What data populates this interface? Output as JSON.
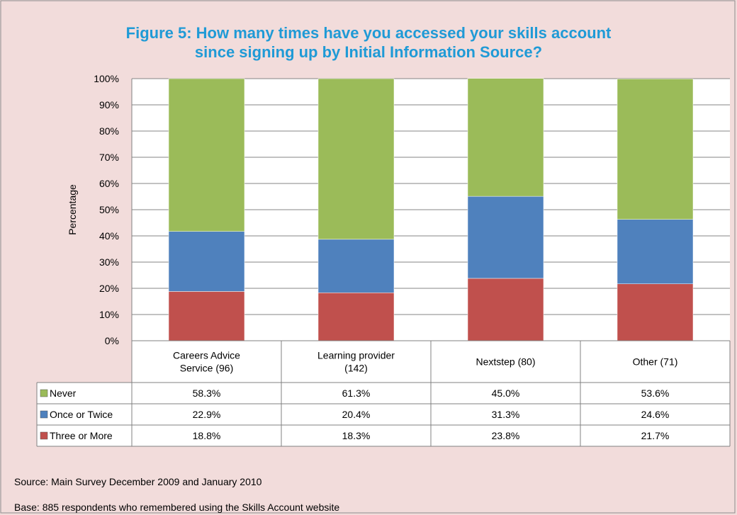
{
  "chart_data": {
    "type": "bar",
    "stacked": true,
    "title_lines": [
      "Figure 5: How many times have you accessed your skills account",
      "since signing up by Initial Information Source?"
    ],
    "xlabel": "",
    "ylabel": "Percentage",
    "ylim": [
      0,
      100
    ],
    "y_ticks": [
      "0%",
      "10%",
      "20%",
      "30%",
      "40%",
      "50%",
      "60%",
      "70%",
      "80%",
      "90%",
      "100%"
    ],
    "categories": [
      [
        "Careers Advice",
        "Service (96)"
      ],
      [
        "Learning provider",
        "(142)"
      ],
      [
        "Nextstep (80)"
      ],
      [
        "Other (71)"
      ]
    ],
    "series": [
      {
        "name": "Three or More",
        "color": "#c0504d",
        "values": [
          18.8,
          18.3,
          23.8,
          21.7
        ],
        "labels": [
          "18.8%",
          "18.3%",
          "23.8%",
          "21.7%"
        ]
      },
      {
        "name": "Once or Twice",
        "color": "#4f81bd",
        "values": [
          22.9,
          20.4,
          31.3,
          24.6
        ],
        "labels": [
          "22.9%",
          "20.4%",
          "31.3%",
          "24.6%"
        ]
      },
      {
        "name": "Never",
        "color": "#9bbb59",
        "values": [
          58.3,
          61.3,
          45.0,
          53.6
        ],
        "labels": [
          "58.3%",
          "61.3%",
          "45.0%",
          "53.6%"
        ]
      }
    ],
    "table_row_order": [
      "Never",
      "Once or Twice",
      "Three or More"
    ],
    "grid": true,
    "legend": "data-table"
  },
  "notes": {
    "source": "Source: Main Survey December 2009 and January 2010",
    "base": "Base: 885 respondents who remembered using the Skills Account website"
  },
  "colors": {
    "background": "#f2dcdb",
    "title": "#1f9ad6",
    "plot_bg": "#ffffff",
    "grid": "#868686"
  }
}
